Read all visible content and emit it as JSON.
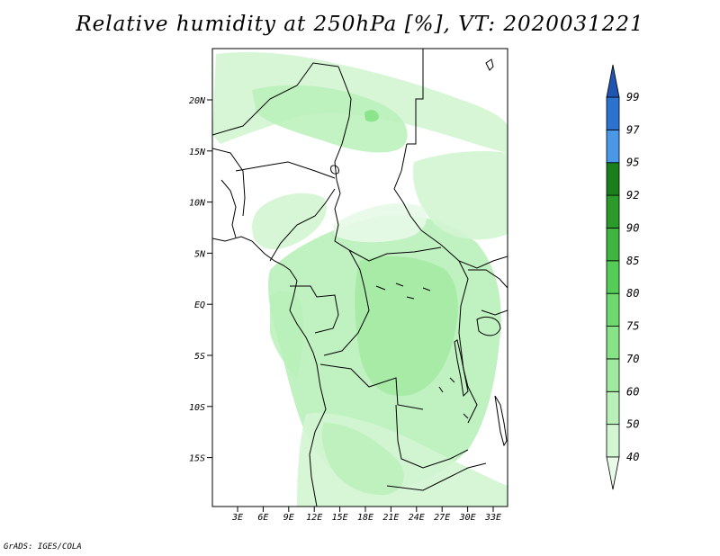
{
  "title": "Relative humidity at 250hPa [%], VT: 2020031221",
  "credit": "GrADS: IGES/COLA",
  "map": {
    "lat_ticks": [
      "20N",
      "15N",
      "10N",
      "5N",
      "EQ",
      "5S",
      "10S",
      "15S"
    ],
    "lon_ticks": [
      "3E",
      "6E",
      "9E",
      "12E",
      "15E",
      "18E",
      "21E",
      "24E",
      "27E",
      "30E",
      "33E"
    ]
  },
  "colorbar": {
    "levels": [
      "40",
      "50",
      "60",
      "70",
      "75",
      "80",
      "85",
      "90",
      "92",
      "95",
      "97",
      "99"
    ],
    "colors": [
      "#e8fae8",
      "#d2f5d2",
      "#b9f0b9",
      "#a0eaa0",
      "#86e386",
      "#6ed96e",
      "#55cc55",
      "#3fb53f",
      "#2a9a2a",
      "#1a7f1a",
      "#4b98e6",
      "#2c72cf",
      "#1f55b0"
    ]
  }
}
